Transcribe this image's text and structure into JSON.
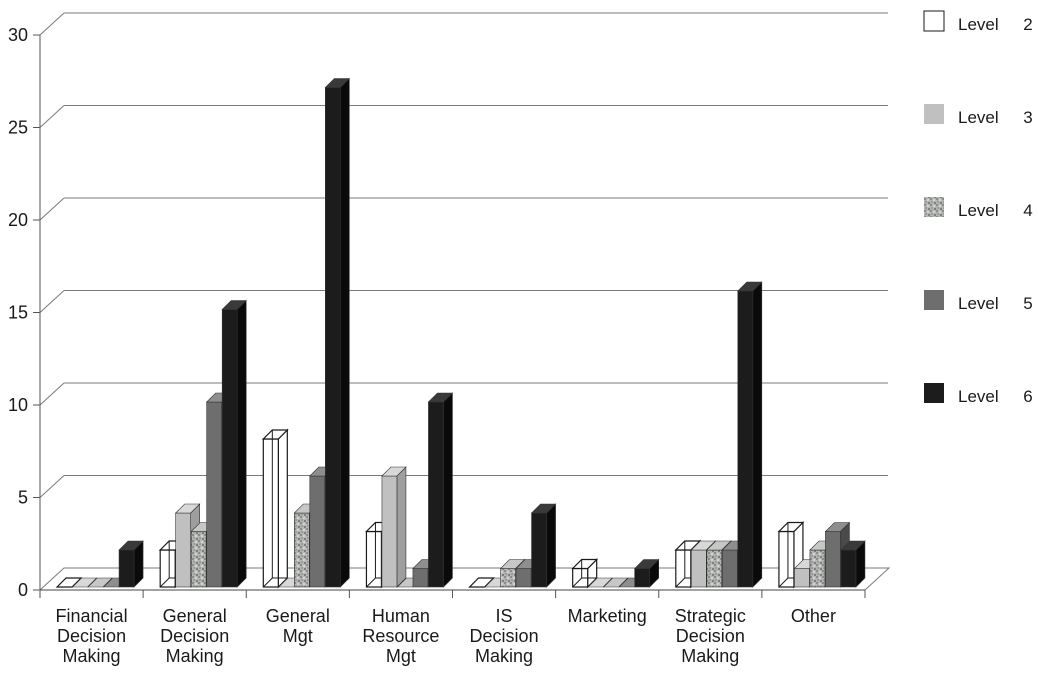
{
  "chart_data": {
    "type": "bar",
    "subtype": "3d-clustered-column",
    "title": "",
    "xlabel": "",
    "ylabel": "",
    "ylim": [
      0,
      30
    ],
    "yticks": [
      "0",
      "5",
      "10",
      "15",
      "20",
      "25",
      "30"
    ],
    "grid": true,
    "legend_position": "right",
    "categories": [
      [
        "Financial",
        "Decision",
        "Making"
      ],
      [
        "General",
        "Decision",
        "Making"
      ],
      [
        "General",
        "Mgt"
      ],
      [
        "Human",
        "Resource",
        "Mgt"
      ],
      [
        "IS",
        "Decision",
        "Making"
      ],
      [
        "Marketing"
      ],
      [
        "Strategic",
        "Decision",
        "Making"
      ],
      [
        "Other"
      ]
    ],
    "series": [
      {
        "name": "Level   2",
        "style": "outline",
        "color": "#ffffff",
        "values": [
          0,
          2,
          8,
          3,
          0,
          1,
          2,
          3
        ]
      },
      {
        "name": "Level   3",
        "style": "light",
        "color": "#bdbdbd",
        "values": [
          0,
          4,
          0,
          6,
          0,
          0,
          2,
          1
        ]
      },
      {
        "name": "Level   4",
        "style": "texture",
        "color": "#a8aaa8",
        "values": [
          0,
          3,
          4,
          0,
          1,
          0,
          2,
          2
        ]
      },
      {
        "name": "Level   5",
        "style": "dark",
        "color": "#6d6d6d",
        "values": [
          0,
          10,
          6,
          1,
          1,
          0,
          2,
          3
        ]
      },
      {
        "name": "Level   6",
        "style": "black",
        "color": "#1c1c1c",
        "values": [
          2,
          15,
          27,
          10,
          4,
          1,
          16,
          2
        ]
      }
    ]
  }
}
